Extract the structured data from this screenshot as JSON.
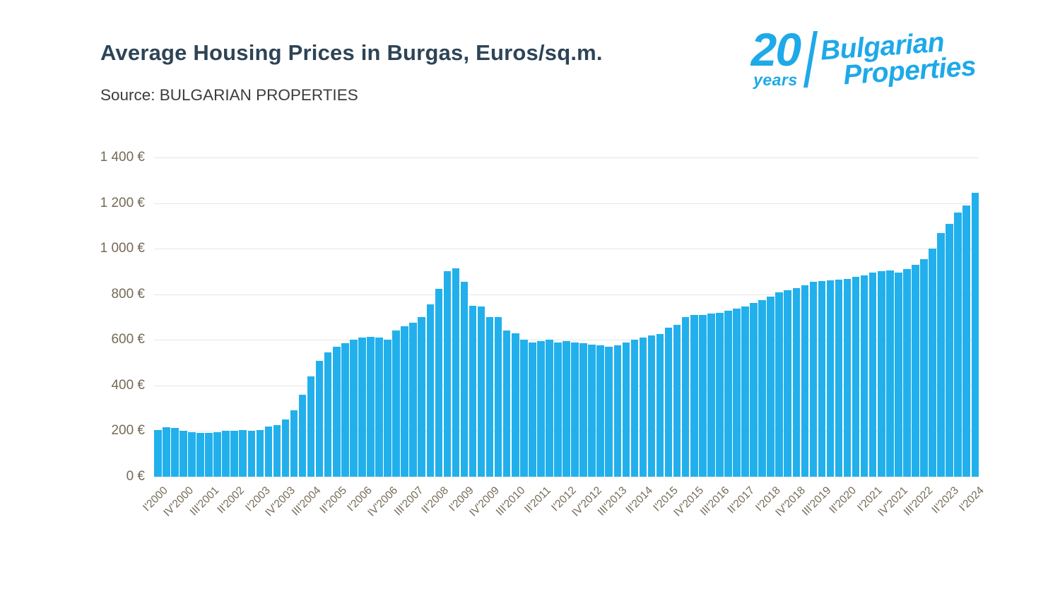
{
  "logo": {
    "number": "20",
    "years": "years",
    "line1": "Bulgarian",
    "line2": "Properties",
    "color": "#1ea9e8"
  },
  "chart_data": {
    "type": "bar",
    "title": "Average Housing Prices in Burgas, Euros/sq.m.",
    "source": "Source: BULGARIAN PROPERTIES",
    "ylabel": "Euros/sq.m.",
    "ylim": [
      0,
      1400
    ],
    "ytick_interval": 200,
    "ytick_labels": [
      "1 400 €",
      "1 200 €",
      "1 000 €",
      "800 €",
      "600 €",
      "400 €",
      "200 €",
      "0 €"
    ],
    "xtick_every": 3,
    "bar_color": "#22b0ec",
    "grid_color": "#e6e6e6",
    "grid": true,
    "legend": "none",
    "categories": [
      "I'2000",
      "II'2000",
      "III'2000",
      "IV'2000",
      "I'2001",
      "II'2001",
      "III'2001",
      "IV'2001",
      "I'2002",
      "II'2002",
      "III'2002",
      "IV'2002",
      "I'2003",
      "II'2003",
      "III'2003",
      "IV'2003",
      "I'2004",
      "II'2004",
      "III'2004",
      "IV'2004",
      "I'2005",
      "II'2005",
      "III'2005",
      "IV'2005",
      "I'2006",
      "II'2006",
      "III'2006",
      "IV'2006",
      "I'2007",
      "II'2007",
      "III'2007",
      "IV'2007",
      "I'2008",
      "II'2008",
      "III'2008",
      "IV'2008",
      "I'2009",
      "II'2009",
      "III'2009",
      "IV'2009",
      "I'2010",
      "II'2010",
      "III'2010",
      "IV'2010",
      "I'2011",
      "II'2011",
      "III'2011",
      "IV'2011",
      "I'2012",
      "II'2012",
      "III'2012",
      "IV'2012",
      "I'2013",
      "II'2013",
      "III'2013",
      "IV'2013",
      "I'2014",
      "II'2014",
      "III'2014",
      "IV'2014",
      "I'2015",
      "II'2015",
      "III'2015",
      "IV'2015",
      "I'2016",
      "II'2016",
      "III'2016",
      "IV'2016",
      "I'2017",
      "II'2017",
      "III'2017",
      "IV'2017",
      "I'2018",
      "II'2018",
      "III'2018",
      "IV'2018",
      "I'2019",
      "II'2019",
      "III'2019",
      "IV'2019",
      "I'2020",
      "II'2020",
      "III'2020",
      "IV'2020",
      "I'2021",
      "II'2021",
      "III'2021",
      "IV'2021",
      "I'2022",
      "II'2022",
      "III'2022",
      "IV'2022",
      "I'2023",
      "II'2023",
      "III'2023",
      "IV'2023",
      "I'2024"
    ],
    "values": [
      205,
      218,
      214,
      200,
      196,
      192,
      191,
      195,
      200,
      202,
      205,
      202,
      206,
      220,
      226,
      250,
      290,
      360,
      440,
      508,
      545,
      570,
      585,
      600,
      610,
      614,
      610,
      601,
      640,
      660,
      676,
      700,
      755,
      825,
      900,
      915,
      855,
      750,
      745,
      700,
      700,
      640,
      630,
      600,
      590,
      596,
      600,
      590,
      596,
      588,
      584,
      580,
      576,
      570,
      576,
      590,
      600,
      610,
      618,
      625,
      655,
      665,
      700,
      710,
      710,
      714,
      718,
      728,
      738,
      748,
      762,
      775,
      790,
      808,
      818,
      826,
      840,
      854,
      858,
      862,
      864,
      868,
      876,
      882,
      895,
      900,
      905,
      895,
      910,
      930,
      955,
      1000,
      1070,
      1110,
      1160,
      1190,
      1245
    ]
  }
}
